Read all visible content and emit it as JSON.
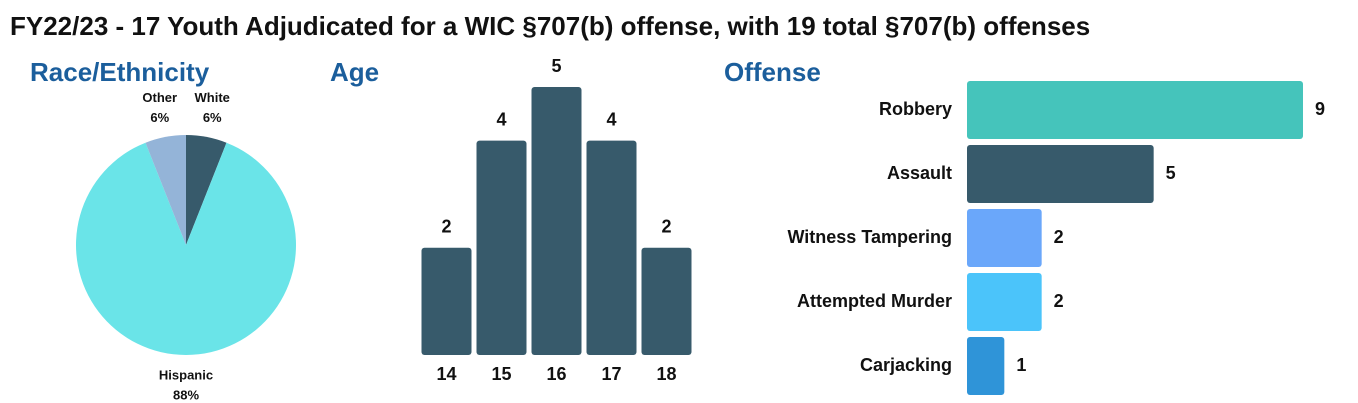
{
  "title": "FY22/23 - 17 Youth Adjudicated for a WIC §707(b) offense, with 19 total §707(b) offenses",
  "chart_data": [
    {
      "type": "pie",
      "title": "Race/Ethnicity",
      "categories": [
        "White",
        "Hispanic",
        "Other"
      ],
      "values": [
        6,
        88,
        6
      ],
      "value_labels": [
        "6%",
        "88%",
        "6%"
      ],
      "colors": [
        "#375a6b",
        "#6ae4e8",
        "#94b4d8"
      ]
    },
    {
      "type": "bar",
      "title": "Age",
      "categories": [
        "14",
        "15",
        "16",
        "17",
        "18"
      ],
      "values": [
        2,
        4,
        5,
        4,
        2
      ],
      "color": "#375a6b"
    },
    {
      "type": "hbar",
      "title": "Offense",
      "categories": [
        "Robbery",
        "Assault",
        "Witness Tampering",
        "Attempted Murder",
        "Carjacking"
      ],
      "values": [
        9,
        5,
        2,
        2,
        1
      ],
      "colors": [
        "#45c4bb",
        "#375a6b",
        "#6aa7fa",
        "#4bc4fa",
        "#2f94d8"
      ]
    }
  ]
}
